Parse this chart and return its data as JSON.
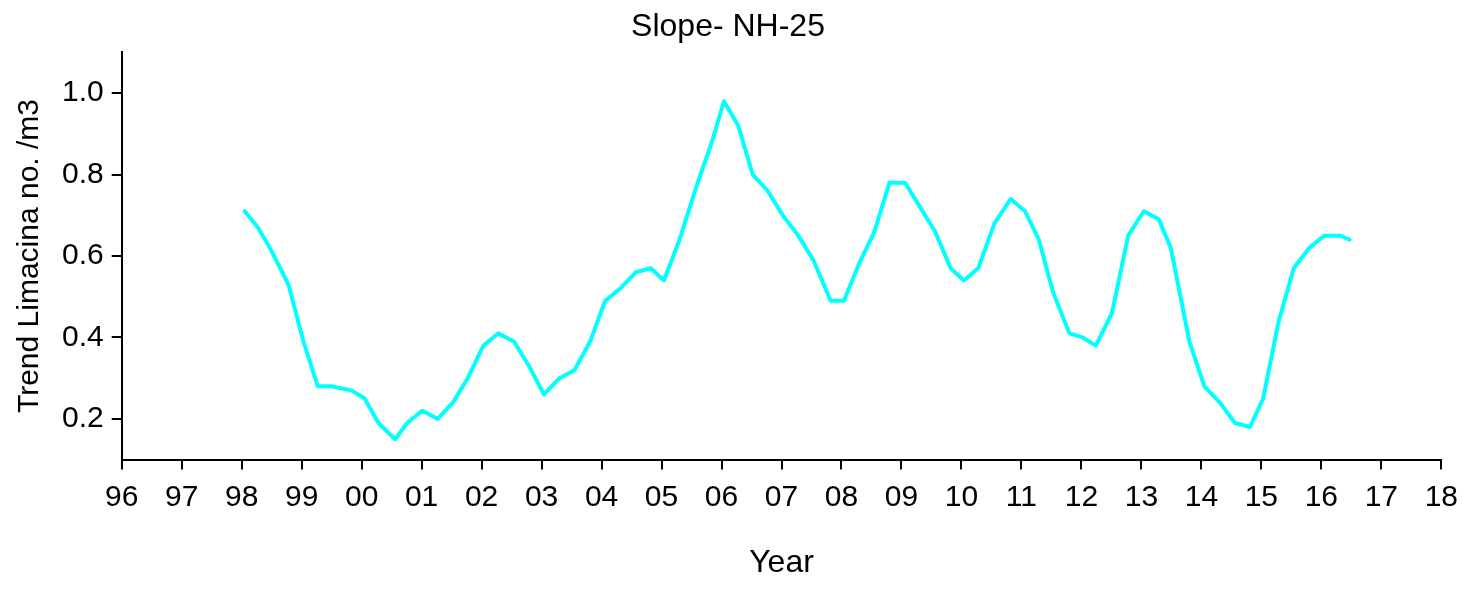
{
  "chart_data": {
    "type": "line",
    "title": "Slope- NH-25",
    "xlabel": "Year",
    "ylabel": "Trend Limacina no. /m3",
    "x": [
      1998.05,
      1998.27,
      1998.47,
      1998.78,
      1999.03,
      1999.27,
      1999.49,
      1999.83,
      2000.05,
      2000.28,
      2000.56,
      2000.76,
      2001.01,
      2001.27,
      2001.52,
      2001.77,
      2002.03,
      2002.28,
      2002.54,
      2002.79,
      2003.04,
      2003.3,
      2003.55,
      2003.81,
      2004.06,
      2004.31,
      2004.57,
      2004.82,
      2005.04,
      2005.3,
      2005.58,
      2005.84,
      2006.04,
      2006.28,
      2006.52,
      2006.77,
      2007.02,
      2007.28,
      2007.53,
      2007.82,
      2008.04,
      2008.29,
      2008.55,
      2008.8,
      2009.06,
      2009.31,
      2009.56,
      2009.82,
      2010.04,
      2010.28,
      2010.55,
      2010.82,
      2011.06,
      2011.29,
      2011.53,
      2011.8,
      2012.02,
      2012.24,
      2012.51,
      2012.78,
      2013.04,
      2013.29,
      2013.49,
      2013.8,
      2014.05,
      2014.31,
      2014.56,
      2014.81,
      2015.03,
      2015.29,
      2015.54,
      2015.8,
      2016.05,
      2016.31,
      2016.47
    ],
    "series": [
      {
        "color": "#00ffff",
        "values": [
          0.71,
          0.67,
          0.62,
          0.53,
          0.39,
          0.28,
          0.28,
          0.27,
          0.25,
          0.19,
          0.15,
          0.19,
          0.22,
          0.2,
          0.24,
          0.3,
          0.38,
          0.41,
          0.39,
          0.33,
          0.26,
          0.3,
          0.32,
          0.39,
          0.49,
          0.52,
          0.56,
          0.57,
          0.54,
          0.64,
          0.77,
          0.88,
          0.98,
          0.92,
          0.8,
          0.76,
          0.7,
          0.65,
          0.59,
          0.49,
          0.49,
          0.58,
          0.66,
          0.78,
          0.78,
          0.72,
          0.66,
          0.57,
          0.54,
          0.57,
          0.68,
          0.74,
          0.71,
          0.64,
          0.51,
          0.41,
          0.4,
          0.38,
          0.46,
          0.65,
          0.71,
          0.69,
          0.62,
          0.39,
          0.28,
          0.24,
          0.19,
          0.18,
          0.25,
          0.44,
          0.57,
          0.62,
          0.65,
          0.65,
          0.64
        ]
      }
    ],
    "xlim": [
      1996,
      2018
    ],
    "xticks": [
      {
        "value": 1996,
        "label": "96"
      },
      {
        "value": 1997,
        "label": "97"
      },
      {
        "value": 1998,
        "label": "98"
      },
      {
        "value": 1999,
        "label": "99"
      },
      {
        "value": 2000,
        "label": "00"
      },
      {
        "value": 2001,
        "label": "01"
      },
      {
        "value": 2002,
        "label": "02"
      },
      {
        "value": 2003,
        "label": "03"
      },
      {
        "value": 2004,
        "label": "04"
      },
      {
        "value": 2005,
        "label": "05"
      },
      {
        "value": 2006,
        "label": "06"
      },
      {
        "value": 2007,
        "label": "07"
      },
      {
        "value": 2008,
        "label": "08"
      },
      {
        "value": 2009,
        "label": "09"
      },
      {
        "value": 2010,
        "label": "10"
      },
      {
        "value": 2011,
        "label": "11"
      },
      {
        "value": 2012,
        "label": "12"
      },
      {
        "value": 2013,
        "label": "13"
      },
      {
        "value": 2014,
        "label": "14"
      },
      {
        "value": 2015,
        "label": "15"
      },
      {
        "value": 2016,
        "label": "16"
      },
      {
        "value": 2017,
        "label": "17"
      },
      {
        "value": 2018,
        "label": "18"
      }
    ],
    "ylim": [
      0.1,
      1.1
    ],
    "yticks": [
      {
        "value": 0.2,
        "label": "0.2"
      },
      {
        "value": 0.4,
        "label": "0.4"
      },
      {
        "value": 0.6,
        "label": "0.6"
      },
      {
        "value": 0.8,
        "label": "0.8"
      },
      {
        "value": 1.0,
        "label": "1.0"
      }
    ],
    "grid": false,
    "legend": false,
    "marker": "none",
    "line_style": "solid"
  }
}
